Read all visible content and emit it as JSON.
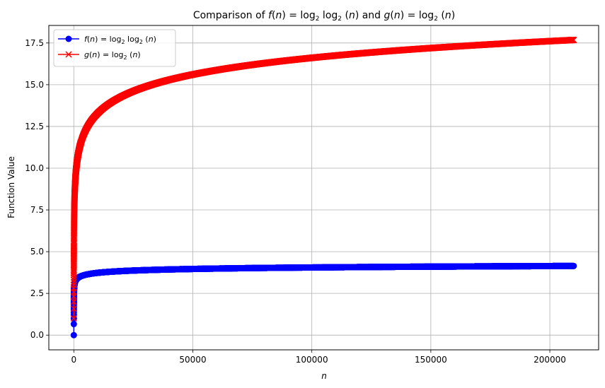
{
  "chart_data": {
    "type": "line",
    "title": "Comparison of f(n) = log₂ log₂ (n) and g(n) = log₂ (n)",
    "xlabel": "n",
    "ylabel": "Function Value",
    "xlim": [
      -10500,
      220500
    ],
    "ylim": [
      -0.88,
      18.55
    ],
    "xticks": [
      0,
      50000,
      100000,
      150000,
      200000
    ],
    "xtick_labels": [
      "0",
      "50000",
      "100000",
      "150000",
      "200000"
    ],
    "yticks": [
      0.0,
      2.5,
      5.0,
      7.5,
      10.0,
      12.5,
      15.0,
      17.5
    ],
    "ytick_labels": [
      "0.0",
      "2.5",
      "5.0",
      "7.5",
      "10.0",
      "12.5",
      "15.0",
      "17.5"
    ],
    "grid": true,
    "legend_position": "top-left",
    "x_domain": [
      2,
      210000
    ],
    "series": [
      {
        "name": "f(n) = log₂ log₂ (n)",
        "formula": "log2(log2(n))",
        "color": "#0000ff",
        "marker": "circle",
        "sample_points": [
          {
            "x": 2,
            "y": 0.0
          },
          {
            "x": 3,
            "y": 0.66
          },
          {
            "x": 4,
            "y": 1.0
          },
          {
            "x": 16,
            "y": 2.0
          },
          {
            "x": 256,
            "y": 3.0
          },
          {
            "x": 1000,
            "y": 3.32
          },
          {
            "x": 10000,
            "y": 3.73
          },
          {
            "x": 50000,
            "y": 3.97
          },
          {
            "x": 100000,
            "y": 4.05
          },
          {
            "x": 150000,
            "y": 4.1
          },
          {
            "x": 210000,
            "y": 4.14
          }
        ]
      },
      {
        "name": "g(n) = log₂ (n)",
        "formula": "log2(n)",
        "color": "#ff0000",
        "marker": "x",
        "sample_points": [
          {
            "x": 2,
            "y": 1.0
          },
          {
            "x": 4,
            "y": 2.0
          },
          {
            "x": 256,
            "y": 8.0
          },
          {
            "x": 1000,
            "y": 9.97
          },
          {
            "x": 10000,
            "y": 13.29
          },
          {
            "x": 50000,
            "y": 15.61
          },
          {
            "x": 100000,
            "y": 16.61
          },
          {
            "x": 150000,
            "y": 17.19
          },
          {
            "x": 210000,
            "y": 17.68
          }
        ]
      }
    ]
  }
}
